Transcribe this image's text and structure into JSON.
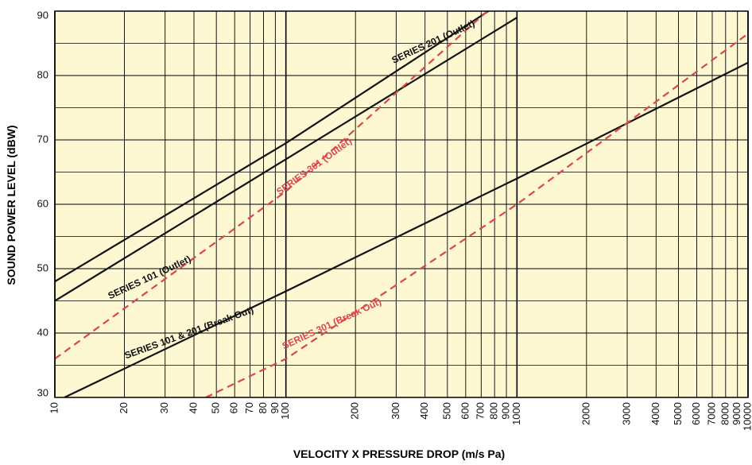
{
  "chart_data": {
    "type": "line",
    "title": "",
    "xlabel": "VELOCITY X PRESSURE DROP (m/s Pa)",
    "ylabel": "SOUND POWER LEVEL (dBW)",
    "x_scale": "log",
    "xlim": [
      10,
      10000
    ],
    "ylim": [
      30,
      90
    ],
    "x_ticks": [
      10,
      20,
      30,
      40,
      50,
      60,
      70,
      80,
      90,
      100,
      200,
      300,
      400,
      500,
      600,
      700,
      800,
      900,
      1000,
      2000,
      3000,
      4000,
      5000,
      6000,
      7000,
      8000,
      9000,
      10000
    ],
    "x_tick_labels": [
      "10",
      "20",
      "30",
      "40",
      "50",
      "60",
      "70",
      "80",
      "90",
      "100",
      "200",
      "300",
      "400",
      "500",
      "600",
      "700",
      "800",
      "900",
      "1000",
      "2000",
      "3000",
      "4000",
      "5000",
      "6000",
      "7000",
      "8000",
      "9000",
      "10000"
    ],
    "y_ticks": [
      30,
      40,
      50,
      60,
      70,
      80,
      90
    ],
    "y_tick_labels": [
      "30",
      "40",
      "50",
      "60",
      "70",
      "80",
      "90"
    ],
    "y_minor_ticks": [
      35,
      45,
      55,
      65,
      75,
      85
    ],
    "grid": true,
    "background_color": "#fdf7d2",
    "series": [
      {
        "name": "SERIES 201 (Outlet)",
        "color": "#111111",
        "dashed": false,
        "x": [
          10,
          100,
          830
        ],
        "y": [
          48,
          69.5,
          91
        ]
      },
      {
        "name": "SERIES 101 (Outlet)",
        "color": "#111111",
        "dashed": false,
        "x": [
          10,
          100,
          1000
        ],
        "y": [
          45,
          67,
          89
        ]
      },
      {
        "name": "SERIES 301 (Outlet)",
        "color": "#d8474f",
        "dashed": true,
        "x": [
          10,
          100,
          800
        ],
        "y": [
          36,
          62,
          91
        ]
      },
      {
        "name": "SERIES 101 & 201 (Break Out)",
        "color": "#111111",
        "dashed": false,
        "x": [
          11,
          100,
          1000,
          10000
        ],
        "y": [
          30,
          46.5,
          64,
          82
        ]
      },
      {
        "name": "SERIES 301 (Break Out)",
        "color": "#d8474f",
        "dashed": true,
        "x": [
          45,
          100,
          1000,
          10000
        ],
        "y": [
          30,
          36,
          60,
          86.5
        ]
      }
    ],
    "annotations": [
      {
        "text": "SERIES 201 (Outlet)",
        "x": 440,
        "y": 84.8,
        "angle": -25,
        "color": "#111111"
      },
      {
        "text": "SERIES 101 (Outlet)",
        "x": 26,
        "y": 48.2,
        "angle": -25,
        "color": "#111111"
      },
      {
        "text": "SERIES 301 (Outlet)",
        "x": 135,
        "y": 65.5,
        "angle": -36,
        "color": "#d8474f"
      },
      {
        "text": "SERIES 101 & 201 (Break Out)",
        "x": 38.5,
        "y": 39.6,
        "angle": -20,
        "color": "#111111"
      },
      {
        "text": "SERIES 301 (Break Out)",
        "x": 160,
        "y": 41,
        "angle": -25,
        "color": "#d8474f"
      }
    ]
  }
}
